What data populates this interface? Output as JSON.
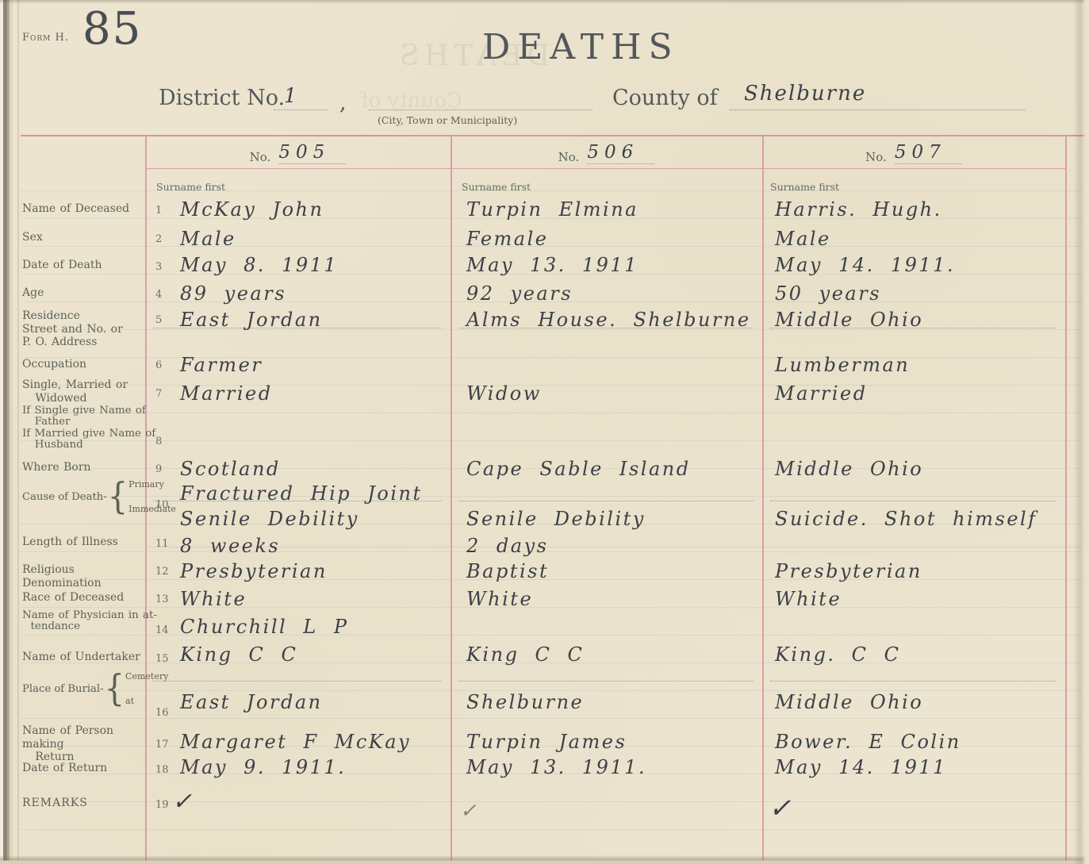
{
  "form": {
    "form_label": "Form H.",
    "page_number": "85",
    "title": "DEATHS",
    "district_label": "District No.",
    "district_value": "1",
    "comma": ",",
    "city_sub_label": "(City, Town or Municipality)",
    "county_label": "County of",
    "county_value": "Shelburne"
  },
  "table": {
    "no_label": "No.",
    "surname_note": "Surname first",
    "cause_label": "Cause of Death-",
    "cause_primary": "Primary",
    "cause_immediate": "Immediate",
    "burial_label": "Place of Burial-",
    "burial_cemetery": "Cemetery",
    "burial_at": "at",
    "brace": "{",
    "rows": [
      {
        "num": "1",
        "label": "Name of Deceased"
      },
      {
        "num": "2",
        "label": "Sex"
      },
      {
        "num": "3",
        "label": "Date of Death"
      },
      {
        "num": "4",
        "label": "Age"
      },
      {
        "num": "5",
        "label": "Residence\nStreet and No. or\nP. O. Address"
      },
      {
        "num": "6",
        "label": "Occupation"
      },
      {
        "num": "7",
        "label": "Single, Married or\n   Widowed"
      },
      {
        "num": "8",
        "label": "If Single give Name of\n   Father\nIf Married give Name of\n   Husband"
      },
      {
        "num": "9",
        "label": "Where Born"
      },
      {
        "num": "10",
        "label": ""
      },
      {
        "num": "11",
        "label": "Length of Illness"
      },
      {
        "num": "12",
        "label": "Religious Denomination"
      },
      {
        "num": "13",
        "label": "Race of Deceased"
      },
      {
        "num": "14",
        "label": "Name of Physician in at-\n  tendance"
      },
      {
        "num": "15",
        "label": "Name of Undertaker"
      },
      {
        "num": "16",
        "label": ""
      },
      {
        "num": "17",
        "label": "Name of Person making\n   Return"
      },
      {
        "num": "18",
        "label": "Date of Return"
      },
      {
        "num": "19",
        "label": "REMARKS"
      }
    ]
  },
  "records": [
    {
      "no": "505",
      "name": "McKay John",
      "sex": "Male",
      "date_of_death": "May 8. 1911",
      "age": "89 years",
      "residence": "East Jordan",
      "occupation": "Farmer",
      "marital_status": "Married",
      "father_or_husband": "",
      "where_born": "Scotland",
      "cause_primary": "Fractured Hip Joint",
      "cause_immediate": "Senile Debility",
      "length_of_illness": "8 weeks",
      "religion": "Presbyterian",
      "race": "White",
      "physician": "Churchill L P",
      "undertaker": "King C C",
      "burial_place": "East Jordan",
      "person_making_return": "Margaret F McKay",
      "date_of_return": "May 9. 1911.",
      "remarks": "✓"
    },
    {
      "no": "506",
      "name": "Turpin Elmina",
      "sex": "Female",
      "date_of_death": "May 13. 1911",
      "age": "92 years",
      "residence": "Alms House. Shelburne",
      "occupation": "",
      "marital_status": "Widow",
      "father_or_husband": "",
      "where_born": "Cape Sable Island",
      "cause_primary": "",
      "cause_immediate": "Senile Debility",
      "length_of_illness": "2 days",
      "religion": "Baptist",
      "race": "White",
      "physician": "",
      "undertaker": "King C C",
      "burial_place": "Shelburne",
      "person_making_return": "Turpin James",
      "date_of_return": "May 13. 1911.",
      "remarks": "✓"
    },
    {
      "no": "507",
      "name": "Harris. Hugh.",
      "sex": "Male",
      "date_of_death": "May 14. 1911.",
      "age": "50 years",
      "residence": "Middle Ohio",
      "occupation": "Lumberman",
      "marital_status": "Married",
      "father_or_husband": "",
      "where_born": "Middle Ohio",
      "cause_primary": "",
      "cause_immediate": "Suicide. Shot himself",
      "length_of_illness": "",
      "religion": "Presbyterian",
      "race": "White",
      "physician": "",
      "undertaker": "King. C C",
      "burial_place": "Middle Ohio",
      "person_making_return": "Bower. E Colin",
      "date_of_return": "May 14. 1911",
      "remarks": "✓"
    }
  ]
}
